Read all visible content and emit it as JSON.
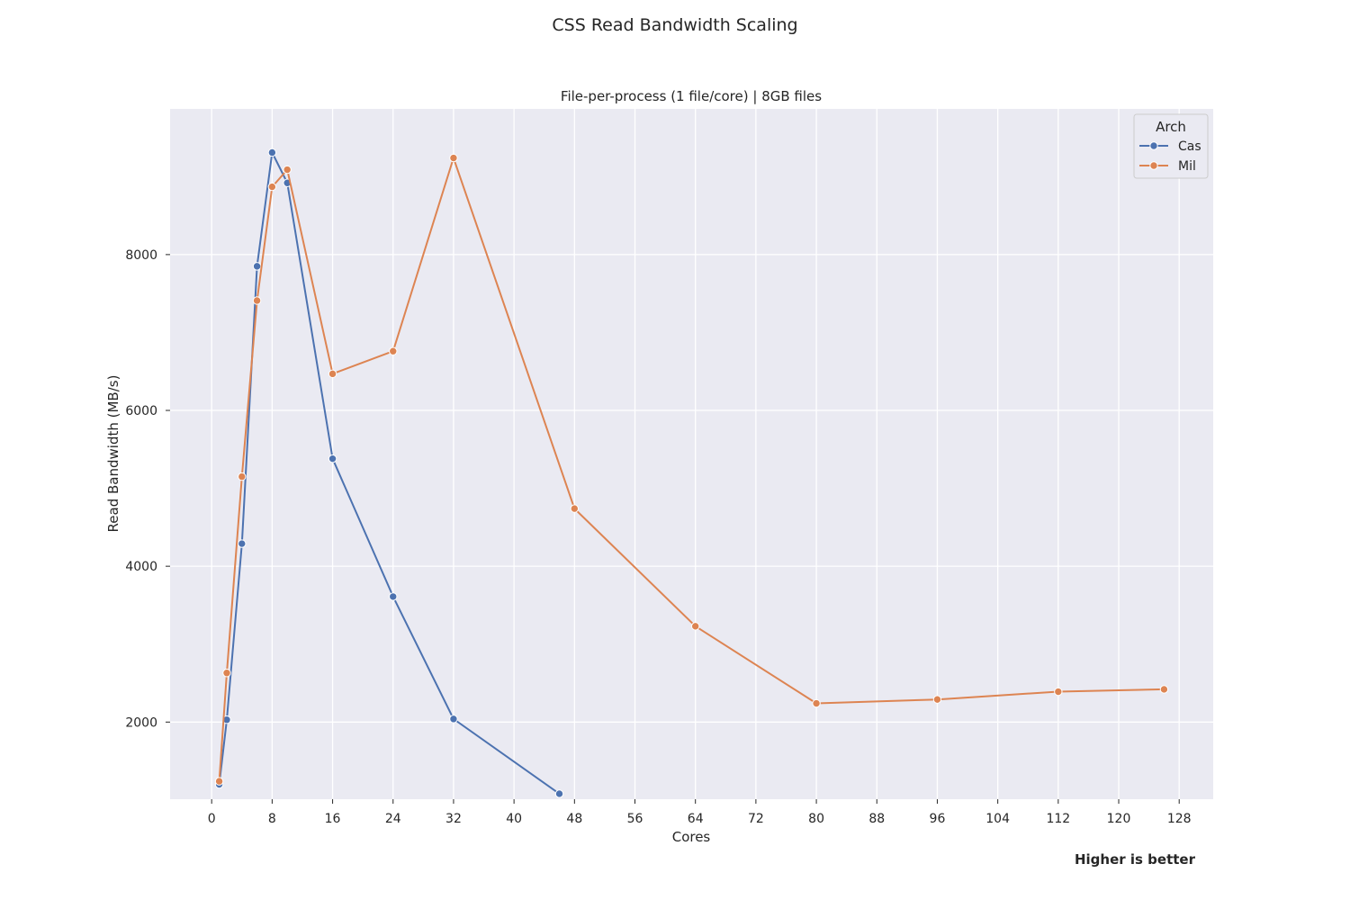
{
  "figure": {
    "suptitle": "CSS Read Bandwidth Scaling",
    "footnote": "Higher is better"
  },
  "chart_data": {
    "type": "line",
    "title": "File-per-process (1 file/core) | 8GB files",
    "xlabel": "Cores",
    "ylabel": "Read Bandwidth (MB/s)",
    "xlim": [
      -5.5,
      132.5
    ],
    "ylim": [
      1010,
      9870
    ],
    "xticks": [
      0,
      8,
      16,
      24,
      32,
      40,
      48,
      56,
      64,
      72,
      80,
      88,
      96,
      104,
      112,
      120,
      128
    ],
    "yticks": [
      2000,
      4000,
      6000,
      8000
    ],
    "grid": true,
    "background": "#eaeaf2",
    "legend": {
      "title": "Arch",
      "placement": "top-right"
    },
    "series": [
      {
        "name": "Cas",
        "color": "#4c72b0",
        "x": [
          1,
          2,
          4,
          6,
          8,
          10,
          16,
          24,
          32,
          46
        ],
        "y": [
          1200,
          2030,
          4290,
          7850,
          9310,
          8920,
          5380,
          3610,
          2040,
          1080
        ]
      },
      {
        "name": "Mil",
        "color": "#dd8452",
        "x": [
          1,
          2,
          4,
          6,
          8,
          10,
          16,
          24,
          32,
          48,
          64,
          80,
          96,
          112,
          126
        ],
        "y": [
          1240,
          2630,
          5150,
          7410,
          8870,
          9090,
          6470,
          6760,
          9240,
          4740,
          3230,
          2240,
          2290,
          2390,
          2420
        ]
      }
    ]
  }
}
